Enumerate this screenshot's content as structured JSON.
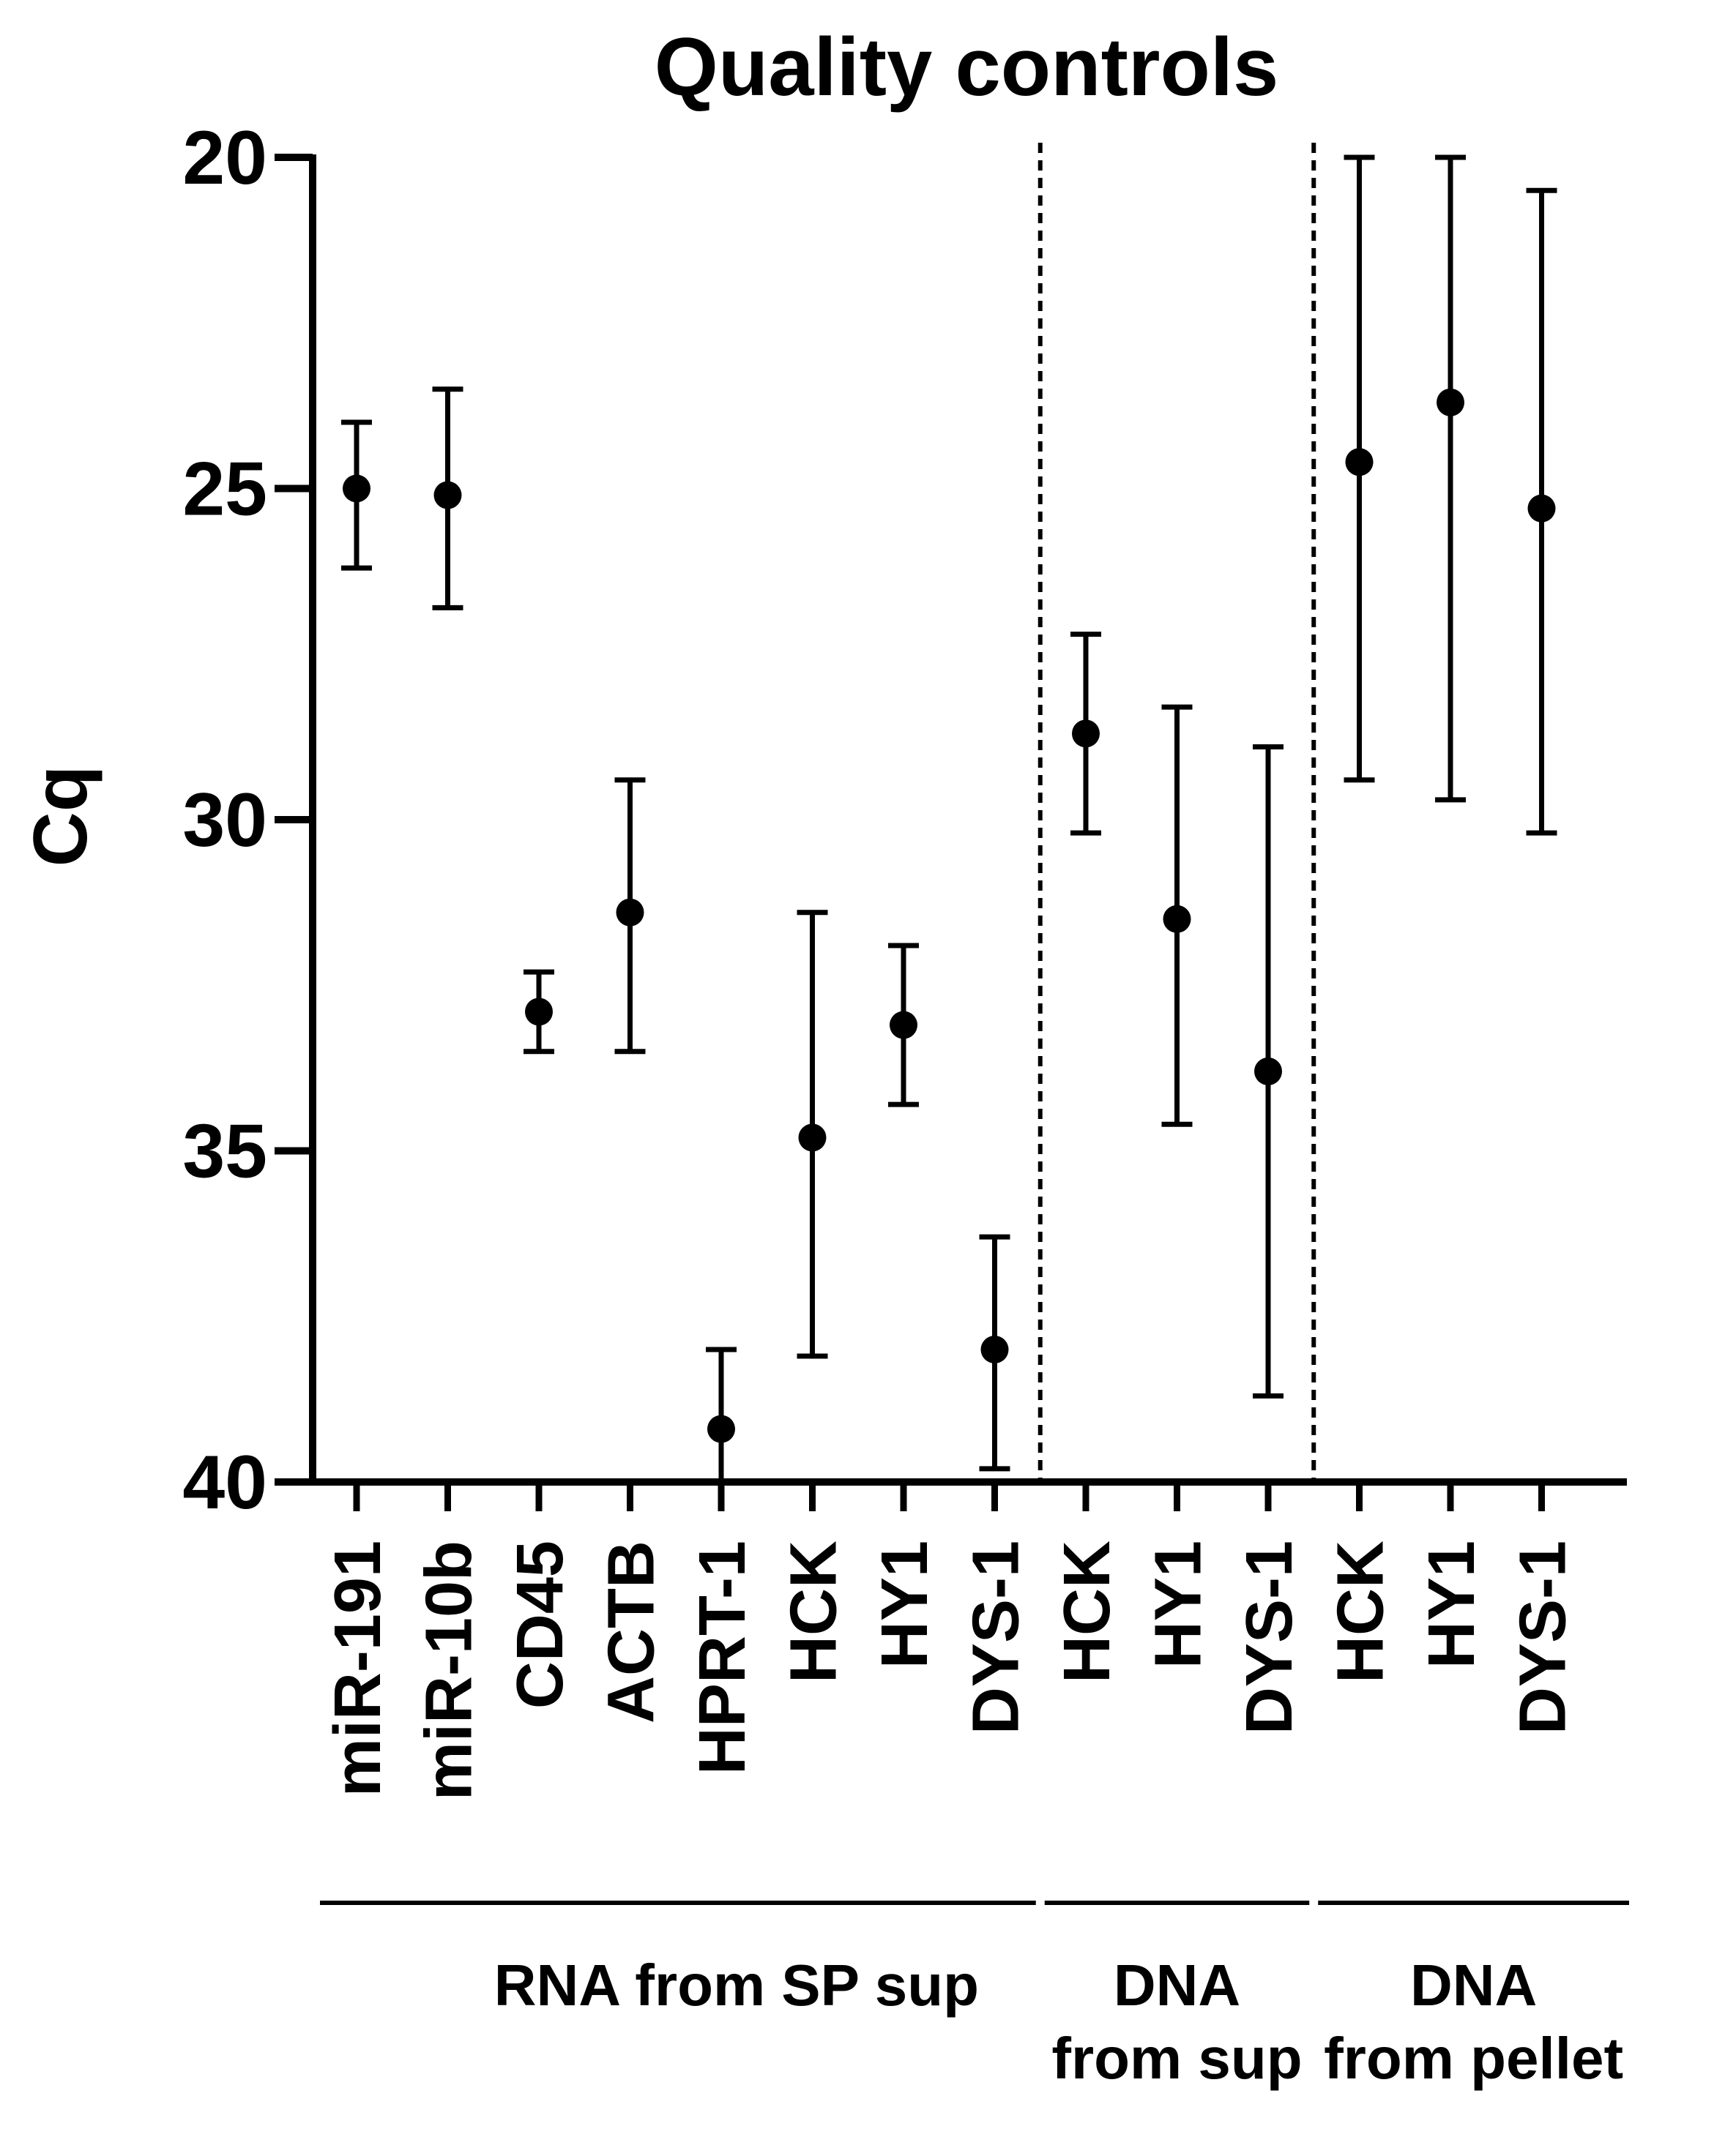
{
  "chart_data": {
    "type": "scatter",
    "title": "Quality controls",
    "xlabel": "",
    "ylabel": "Cq",
    "ylim": [
      40,
      20
    ],
    "y_inverted": true,
    "y_ticks": [
      "20",
      "25",
      "30",
      "35",
      "40"
    ],
    "grid": false,
    "legend": "none",
    "categories": [
      "miR-191",
      "miR-10b",
      "CD45",
      "ACTB",
      "HPRT-1",
      "HCK",
      "HY1",
      "DYS-1",
      "HCK",
      "HY1",
      "DYS-1",
      "HCK",
      "HY1",
      "DYS-1"
    ],
    "values": [
      25.0,
      25.1,
      32.9,
      31.4,
      39.2,
      34.8,
      33.1,
      38.0,
      28.7,
      31.5,
      33.8,
      24.6,
      23.7,
      25.3
    ],
    "error_low": [
      26.2,
      26.8,
      33.5,
      33.5,
      38.0,
      38.1,
      34.3,
      39.8,
      30.2,
      34.6,
      38.7,
      29.4,
      29.7,
      30.2
    ],
    "error_high": [
      24.0,
      23.5,
      32.3,
      29.4,
      40.0,
      31.4,
      31.9,
      36.3,
      27.2,
      28.3,
      28.9,
      20.0,
      20.0,
      20.5
    ],
    "groups": [
      {
        "label": "RNA from SP sup",
        "range": [
          0,
          7
        ]
      },
      {
        "label": "DNA from sup",
        "range": [
          8,
          10
        ]
      },
      {
        "label": "DNA from pellet",
        "range": [
          11,
          13
        ]
      }
    ],
    "dividers_after": [
      7,
      10
    ],
    "colors": {
      "marker": "#000000",
      "axis": "#000000",
      "background": "#ffffff"
    }
  }
}
